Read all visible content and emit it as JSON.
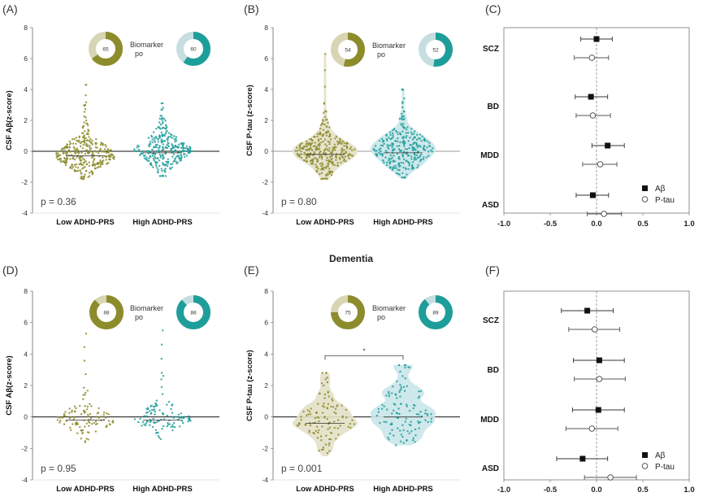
{
  "figure": {
    "section_title": "Dementia",
    "colors": {
      "low": "#8c8c2c",
      "low_light": "#d8d5b4",
      "low_fill": "#e3e0c8",
      "high": "#1e9e9a",
      "high_light": "#c6dee0",
      "high_fill": "#c9e6e9",
      "marker": "#111111",
      "grid": "#bbbbbb"
    }
  },
  "chart_data": [
    {
      "id": "A",
      "panel_label": "(A)",
      "type": "violin-swarm",
      "ylabel": "CSF Aβ(z-score)",
      "ylim": [
        -4,
        8
      ],
      "yticks": [
        "8",
        "6",
        "4",
        "2",
        "0",
        "-2",
        "-4"
      ],
      "categories": [
        "Low ADHD-PRS",
        "High ADHD-PRS"
      ],
      "pvalue": "p = 0.36",
      "legend_text": [
        "Biomarker",
        "po"
      ],
      "donuts": [
        {
          "label": "65",
          "value": 65
        },
        {
          "label": "60",
          "value": 60
        }
      ],
      "reference_line": "solid",
      "series": [
        {
          "name": "Low ADHD-PRS",
          "median": -0.3,
          "min": -1.8,
          "max": 4.3,
          "n": 320,
          "spread": 0.65,
          "violin": false
        },
        {
          "name": "High ADHD-PRS",
          "median": -0.1,
          "min": -1.6,
          "max": 3.1,
          "n": 300,
          "spread": 0.7,
          "violin": false
        }
      ]
    },
    {
      "id": "B",
      "panel_label": "(B)",
      "type": "violin-swarm",
      "ylabel": "CSF P-tau (z-score)",
      "ylim": [
        -4,
        8
      ],
      "yticks": [
        "8",
        "6",
        "4",
        "2",
        "0",
        "-2",
        "-4"
      ],
      "categories": [
        "Low ADHD-PRS",
        "High ADHD-PRS"
      ],
      "pvalue": "p = 0.80",
      "legend_text": [
        "Biomarker",
        "po"
      ],
      "donuts": [
        {
          "label": "54",
          "value": 54
        },
        {
          "label": "52",
          "value": 52
        }
      ],
      "reference_line": "grey",
      "series": [
        {
          "name": "Low ADHD-PRS",
          "median": -0.2,
          "min": -1.8,
          "max": 6.3,
          "n": 300,
          "spread": 0.7,
          "violin": true
        },
        {
          "name": "High ADHD-PRS",
          "median": -0.1,
          "min": -1.7,
          "max": 4.0,
          "n": 280,
          "spread": 0.8,
          "violin": true
        }
      ]
    },
    {
      "id": "C",
      "panel_label": "(C)",
      "type": "forest",
      "xlim": [
        -1.0,
        1.0
      ],
      "xticks": [
        "-1.0",
        "-0.5",
        "0.0",
        "0.5",
        "1.0"
      ],
      "legend": [
        {
          "label": "Aβ",
          "marker": "filled-square"
        },
        {
          "label": "P-tau",
          "marker": "open-circle"
        }
      ],
      "rows": [
        {
          "name": "SCZ",
          "abeta": {
            "est": 0.0,
            "lo": -0.17,
            "hi": 0.17
          },
          "ptau": {
            "est": -0.05,
            "lo": -0.24,
            "hi": 0.13
          }
        },
        {
          "name": "BD",
          "abeta": {
            "est": -0.06,
            "lo": -0.23,
            "hi": 0.12
          },
          "ptau": {
            "est": -0.04,
            "lo": -0.22,
            "hi": 0.15
          }
        },
        {
          "name": "MDD",
          "abeta": {
            "est": 0.12,
            "lo": -0.05,
            "hi": 0.3
          },
          "ptau": {
            "est": 0.04,
            "lo": -0.15,
            "hi": 0.22
          }
        },
        {
          "name": "ASD",
          "abeta": {
            "est": -0.04,
            "lo": -0.22,
            "hi": 0.13
          },
          "ptau": {
            "est": 0.08,
            "lo": -0.1,
            "hi": 0.27
          }
        }
      ]
    },
    {
      "id": "D",
      "panel_label": "(D)",
      "type": "violin-swarm",
      "ylabel": "CSF Aβ(z-score)",
      "ylim": [
        -4,
        8
      ],
      "yticks": [
        "8",
        "6",
        "4",
        "2",
        "0",
        "-2",
        "-4"
      ],
      "categories": [
        "Low ADHD-PRS",
        "High ADHD-PRS"
      ],
      "pvalue": "p = 0.95",
      "legend_text": [
        "Biomarker",
        "po"
      ],
      "donuts": [
        {
          "label": "88",
          "value": 88
        },
        {
          "label": "88",
          "value": 88
        }
      ],
      "reference_line": "solid",
      "series": [
        {
          "name": "Low ADHD-PRS",
          "median": -0.2,
          "min": -1.6,
          "max": 5.3,
          "n": 110,
          "spread": 0.55,
          "violin": false
        },
        {
          "name": "High ADHD-PRS",
          "median": -0.2,
          "min": -1.5,
          "max": 5.5,
          "n": 110,
          "spread": 0.55,
          "violin": false
        }
      ]
    },
    {
      "id": "E",
      "panel_label": "(E)",
      "type": "violin-swarm",
      "ylabel": "CSF P-tau (z-score)",
      "ylim": [
        -4,
        8
      ],
      "yticks": [
        "8",
        "6",
        "4",
        "2",
        "0",
        "-2",
        "-4"
      ],
      "categories": [
        "Low ADHD-PRS",
        "High ADHD-PRS"
      ],
      "pvalue": "p = 0.001",
      "significance": "*",
      "legend_text": [
        "Biomarker",
        "po"
      ],
      "donuts": [
        {
          "label": "75",
          "value": 75
        },
        {
          "label": "89",
          "value": 89
        }
      ],
      "reference_line": "solid",
      "series": [
        {
          "name": "Low ADHD-PRS",
          "median": -0.4,
          "min": -2.5,
          "max": 2.8,
          "n": 110,
          "spread": 0.9,
          "violin": true
        },
        {
          "name": "High ADHD-PRS",
          "median": 0.0,
          "min": -1.8,
          "max": 3.3,
          "n": 110,
          "spread": 0.9,
          "violin": true
        }
      ]
    },
    {
      "id": "F",
      "panel_label": "(F)",
      "type": "forest",
      "xlim": [
        -1.0,
        1.0
      ],
      "xticks": [
        "-1.0",
        "-0.5",
        "0.0",
        "0.5",
        "1.0"
      ],
      "legend": [
        {
          "label": "Aβ",
          "marker": "filled-square"
        },
        {
          "label": "P-tau",
          "marker": "open-circle"
        }
      ],
      "rows": [
        {
          "name": "SCZ",
          "abeta": {
            "est": -0.1,
            "lo": -0.38,
            "hi": 0.18
          },
          "ptau": {
            "est": -0.02,
            "lo": -0.3,
            "hi": 0.25
          }
        },
        {
          "name": "BD",
          "abeta": {
            "est": 0.03,
            "lo": -0.25,
            "hi": 0.3
          },
          "ptau": {
            "est": 0.03,
            "lo": -0.24,
            "hi": 0.31
          }
        },
        {
          "name": "MDD",
          "abeta": {
            "est": 0.02,
            "lo": -0.26,
            "hi": 0.3
          },
          "ptau": {
            "est": -0.05,
            "lo": -0.33,
            "hi": 0.23
          }
        },
        {
          "name": "ASD",
          "abeta": {
            "est": -0.15,
            "lo": -0.43,
            "hi": 0.12
          },
          "ptau": {
            "est": 0.15,
            "lo": -0.13,
            "hi": 0.43
          }
        }
      ]
    }
  ]
}
